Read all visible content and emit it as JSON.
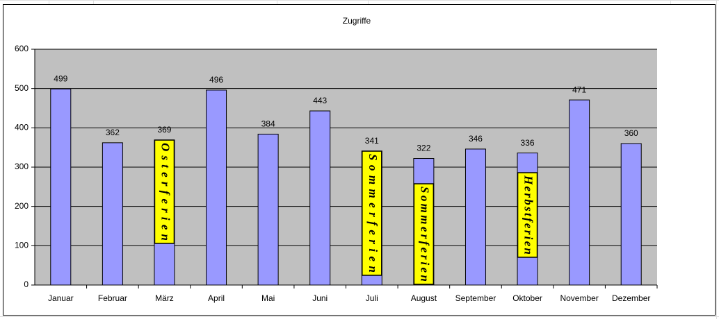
{
  "chart_data": {
    "type": "bar",
    "title": "Zugriffe",
    "categories": [
      "Januar",
      "Februar",
      "März",
      "April",
      "Mai",
      "Juni",
      "Juli",
      "August",
      "September",
      "Oktober",
      "November",
      "Dezember"
    ],
    "values": [
      499,
      362,
      369,
      496,
      384,
      443,
      341,
      322,
      346,
      336,
      471,
      360
    ],
    "color": "#9999ff",
    "ylim": [
      0,
      600
    ],
    "yticks": [
      0,
      100,
      200,
      300,
      400,
      500,
      600
    ],
    "grid": true,
    "annotations": [
      {
        "text": "Osterferien",
        "category": "März"
      },
      {
        "text": "Sommerferien",
        "category": "Juli"
      },
      {
        "text": "Sommerferien",
        "category": "August"
      },
      {
        "text": "Herbstferien",
        "category": "Oktober"
      }
    ]
  }
}
